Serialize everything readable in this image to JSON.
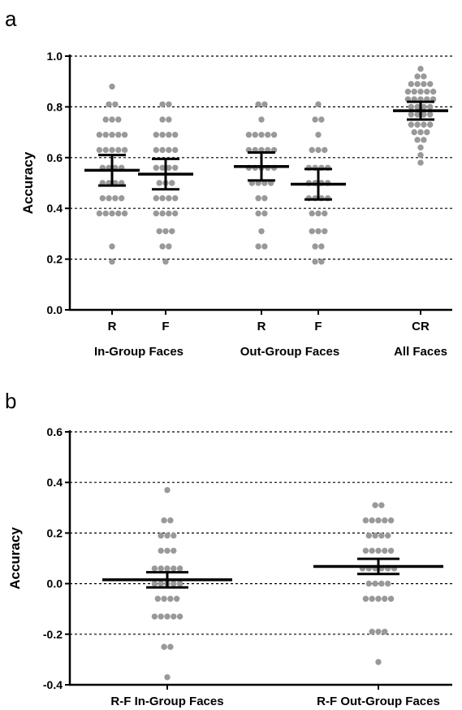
{
  "chart_data": [
    {
      "panel": "a",
      "type": "scatter",
      "ylabel": "Accuracy",
      "ylim": [
        0.0,
        1.0
      ],
      "yticks": [
        "0.0",
        "0.2",
        "0.4",
        "0.6",
        "0.8",
        "1.0"
      ],
      "grid": "dashed horizontal at major ticks",
      "groups": [
        {
          "label": "In-Group Faces",
          "categories": [
            "R",
            "F"
          ]
        },
        {
          "label": "Out-Group Faces",
          "categories": [
            "R",
            "F"
          ]
        },
        {
          "label": "All Faces",
          "categories": [
            "CR"
          ]
        }
      ],
      "series": [
        {
          "group": "In-Group Faces",
          "category": "R",
          "mean": 0.55,
          "error_low": 0.49,
          "error_high": 0.61,
          "values": [
            0.88,
            0.81,
            0.81,
            0.75,
            0.75,
            0.75,
            0.69,
            0.69,
            0.69,
            0.69,
            0.69,
            0.63,
            0.63,
            0.63,
            0.63,
            0.63,
            0.56,
            0.56,
            0.56,
            0.56,
            0.5,
            0.5,
            0.5,
            0.5,
            0.44,
            0.44,
            0.44,
            0.44,
            0.38,
            0.38,
            0.38,
            0.38,
            0.38,
            0.25,
            0.19
          ]
        },
        {
          "group": "In-Group Faces",
          "category": "F",
          "mean": 0.535,
          "error_low": 0.475,
          "error_high": 0.595,
          "values": [
            0.81,
            0.81,
            0.75,
            0.75,
            0.69,
            0.69,
            0.69,
            0.69,
            0.63,
            0.63,
            0.63,
            0.63,
            0.56,
            0.56,
            0.56,
            0.56,
            0.5,
            0.5,
            0.5,
            0.44,
            0.44,
            0.44,
            0.44,
            0.38,
            0.38,
            0.38,
            0.38,
            0.31,
            0.31,
            0.31,
            0.25,
            0.25,
            0.19
          ]
        },
        {
          "group": "Out-Group Faces",
          "category": "R",
          "mean": 0.565,
          "error_low": 0.51,
          "error_high": 0.62,
          "values": [
            0.81,
            0.81,
            0.75,
            0.69,
            0.69,
            0.69,
            0.69,
            0.69,
            0.63,
            0.63,
            0.63,
            0.63,
            0.63,
            0.56,
            0.56,
            0.56,
            0.56,
            0.56,
            0.5,
            0.5,
            0.5,
            0.5,
            0.44,
            0.44,
            0.38,
            0.38,
            0.31,
            0.25,
            0.25
          ]
        },
        {
          "group": "Out-Group Faces",
          "category": "F",
          "mean": 0.495,
          "error_low": 0.435,
          "error_high": 0.555,
          "values": [
            0.81,
            0.75,
            0.75,
            0.69,
            0.63,
            0.63,
            0.63,
            0.56,
            0.56,
            0.56,
            0.56,
            0.5,
            0.5,
            0.5,
            0.5,
            0.44,
            0.44,
            0.44,
            0.44,
            0.38,
            0.38,
            0.38,
            0.31,
            0.31,
            0.31,
            0.25,
            0.25,
            0.19,
            0.19
          ]
        },
        {
          "group": "All Faces",
          "category": "CR",
          "mean": 0.785,
          "error_low": 0.75,
          "error_high": 0.82,
          "values": [
            0.95,
            0.92,
            0.92,
            0.89,
            0.89,
            0.89,
            0.89,
            0.86,
            0.86,
            0.86,
            0.86,
            0.86,
            0.83,
            0.83,
            0.83,
            0.83,
            0.83,
            0.8,
            0.8,
            0.8,
            0.8,
            0.77,
            0.77,
            0.77,
            0.77,
            0.73,
            0.73,
            0.73,
            0.73,
            0.7,
            0.7,
            0.7,
            0.67,
            0.67,
            0.64,
            0.61,
            0.58
          ]
        }
      ]
    },
    {
      "panel": "b",
      "type": "scatter",
      "ylabel": "Accuracy",
      "ylim": [
        -0.4,
        0.6
      ],
      "yticks": [
        "-0.4",
        "-0.2",
        "0.0",
        "0.2",
        "0.4",
        "0.6"
      ],
      "grid": "dashed horizontal at major ticks",
      "categories": [
        "R-F In-Group Faces",
        "R-F Out-Group Faces"
      ],
      "series": [
        {
          "category": "R-F In-Group Faces",
          "mean": 0.015,
          "error_low": -0.015,
          "error_high": 0.045,
          "values": [
            0.37,
            0.25,
            0.25,
            0.19,
            0.19,
            0.19,
            0.13,
            0.13,
            0.13,
            0.06,
            0.06,
            0.06,
            0.06,
            0.06,
            0.0,
            0.0,
            0.0,
            0.0,
            0.0,
            -0.06,
            -0.06,
            -0.06,
            -0.06,
            -0.13,
            -0.13,
            -0.13,
            -0.13,
            -0.13,
            -0.25,
            -0.25,
            -0.37
          ]
        },
        {
          "category": "R-F Out-Group Faces",
          "mean": 0.068,
          "error_low": 0.038,
          "error_high": 0.098,
          "values": [
            0.31,
            0.31,
            0.25,
            0.25,
            0.25,
            0.25,
            0.25,
            0.19,
            0.19,
            0.19,
            0.19,
            0.13,
            0.13,
            0.13,
            0.13,
            0.13,
            0.06,
            0.06,
            0.06,
            0.06,
            0.06,
            0.06,
            0.0,
            0.0,
            0.0,
            0.0,
            -0.06,
            -0.06,
            -0.06,
            -0.06,
            -0.06,
            -0.19,
            -0.19,
            -0.19,
            -0.31
          ]
        }
      ]
    }
  ],
  "panel_labels": {
    "a": "a",
    "b": "b"
  },
  "colors": {
    "points": "#999999",
    "bars": "#000000",
    "grid": "#000000",
    "axis": "#000000"
  }
}
